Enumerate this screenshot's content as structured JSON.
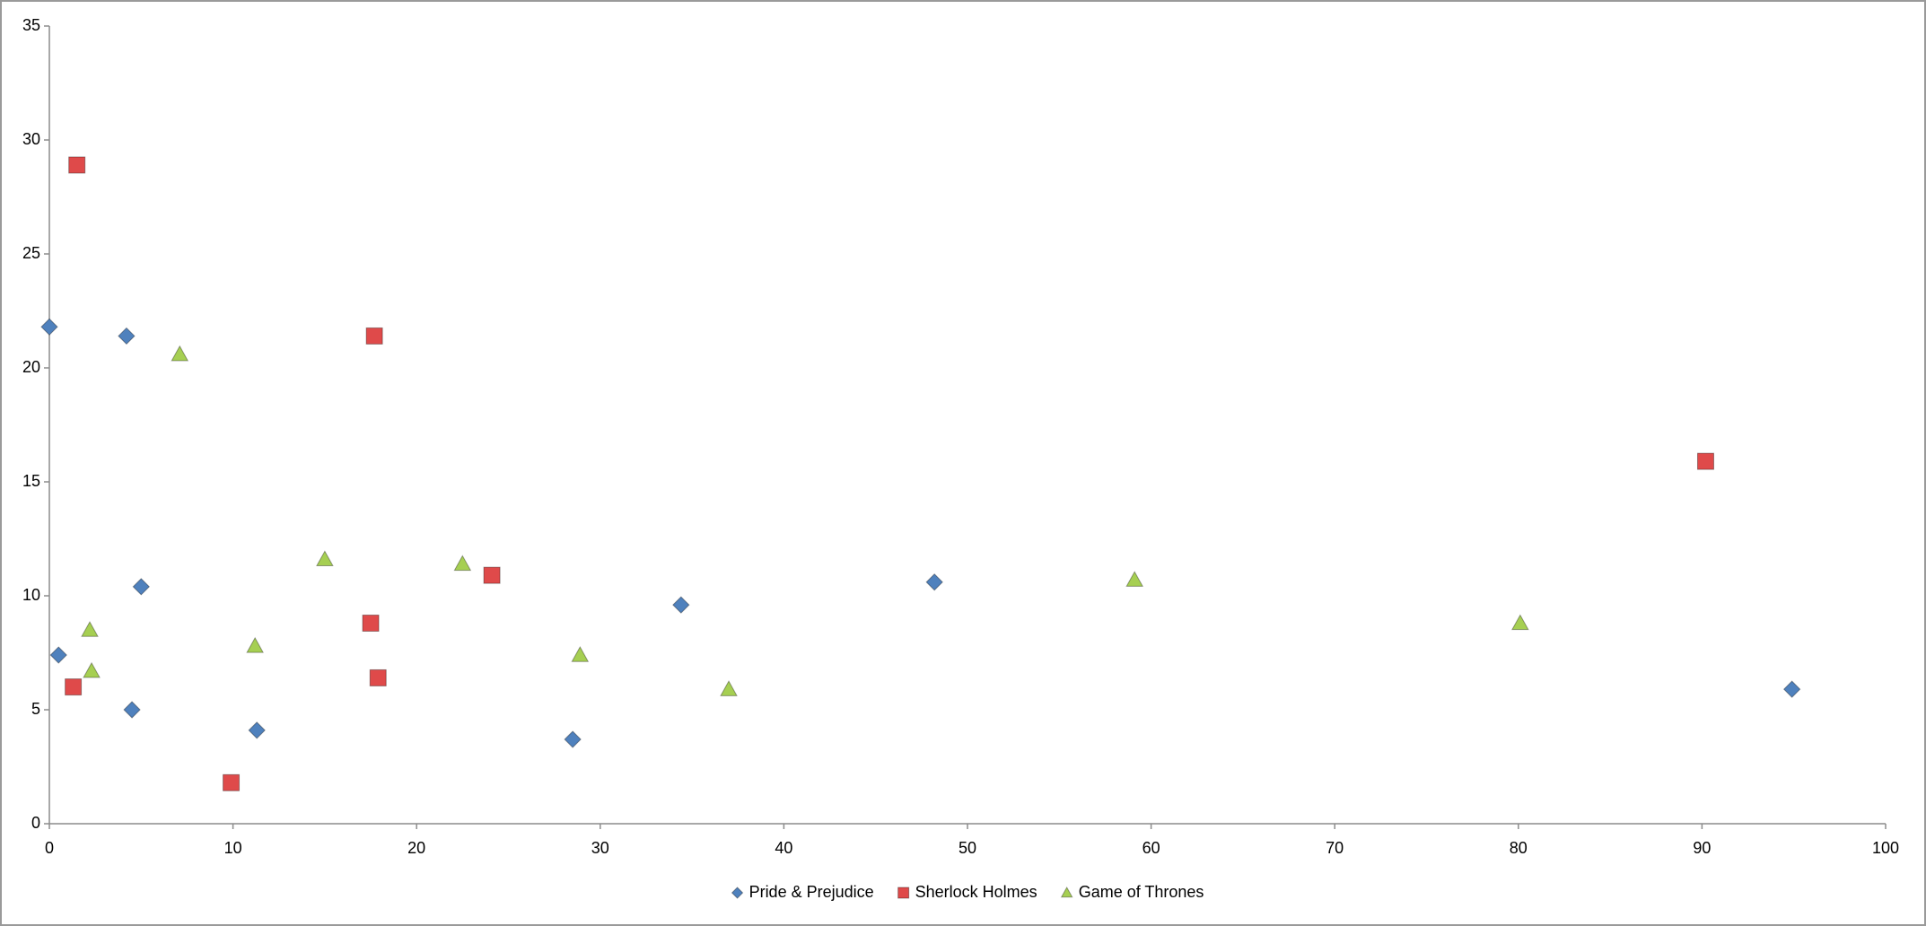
{
  "chart_data": {
    "type": "scatter",
    "xlim": [
      0,
      100
    ],
    "xticks": [
      0,
      10,
      20,
      30,
      40,
      50,
      60,
      70,
      80,
      90,
      100
    ],
    "ylim": [
      0,
      35
    ],
    "yticks": [
      0,
      5,
      10,
      15,
      20,
      25,
      30,
      35
    ],
    "grid": false,
    "legend": "bottom",
    "series": [
      {
        "name": "Pride & Prejudice",
        "color": "#4f81bd",
        "marker": "diamond",
        "x": [
          0,
          0.5,
          4.2,
          4.5,
          5.0,
          11.3,
          28.5,
          34.4,
          48.2,
          94.9
        ],
        "values": [
          21.8,
          7.4,
          21.4,
          5.0,
          10.4,
          4.1,
          3.7,
          9.6,
          10.6,
          5.9
        ]
      },
      {
        "name": "Sherlock Holmes",
        "color": "#df4a4a",
        "marker": "square",
        "x": [
          1.5,
          1.3,
          9.9,
          17.7,
          17.5,
          17.9,
          24.1,
          90.2
        ],
        "values": [
          28.9,
          6.0,
          1.8,
          21.4,
          8.8,
          6.4,
          10.9,
          15.9
        ]
      },
      {
        "name": "Game of Thrones",
        "color": "#a6cf52",
        "marker": "triangle",
        "x": [
          7.1,
          2.2,
          2.3,
          11.2,
          15.0,
          22.5,
          28.9,
          37.0,
          59.1,
          80.1
        ],
        "values": [
          20.6,
          8.5,
          6.7,
          7.8,
          11.6,
          11.4,
          7.4,
          5.9,
          10.7,
          8.8
        ]
      }
    ]
  }
}
